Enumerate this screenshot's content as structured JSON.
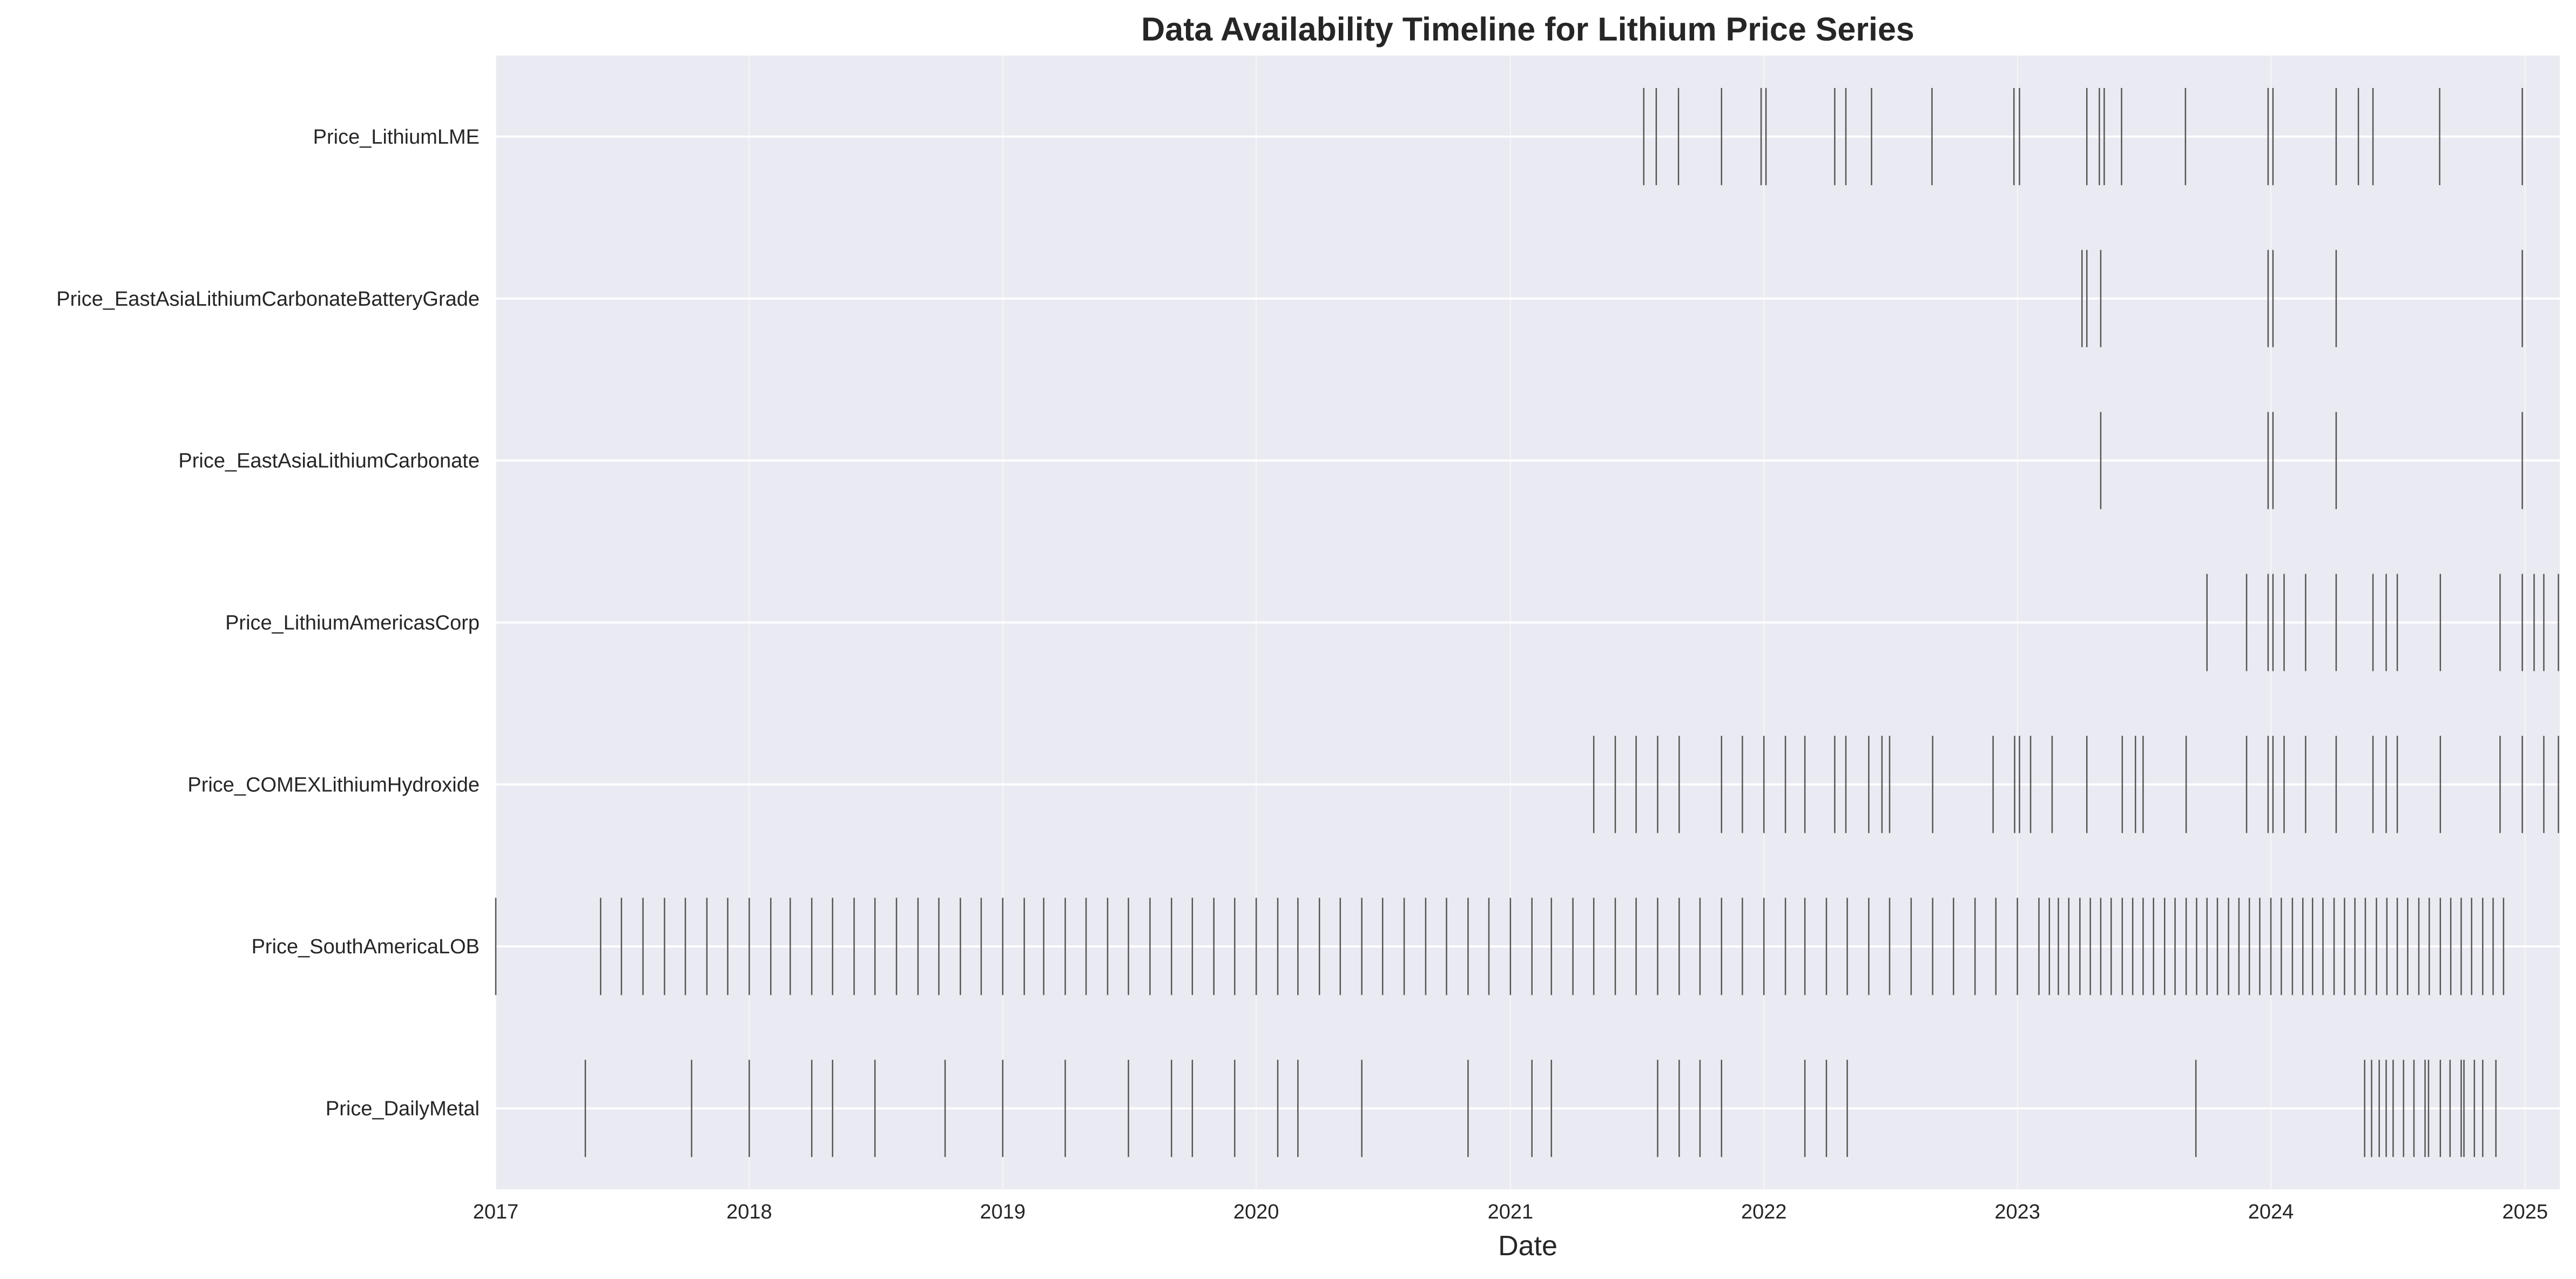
{
  "chart_data": {
    "type": "timeline",
    "title": "Data Availability Timeline for Lithium Price Series",
    "xlabel": "Date",
    "ylabel": "",
    "xlim": [
      "2017-01-01",
      "2025-02-20"
    ],
    "x_ticks": [
      "2017",
      "2018",
      "2019",
      "2020",
      "2021",
      "2022",
      "2023",
      "2024",
      "2025"
    ],
    "grid": true,
    "colors": {
      "plot_background": "#eaeaf2",
      "grid": "#ffffff",
      "event": "#555555",
      "text": "#262626"
    },
    "series": [
      {
        "name": "Price_LithiumLME",
        "dates": [
          "2021-07-12",
          "2021-07-30",
          "2021-08-31",
          "2021-11-01",
          "2021-12-28",
          "2022-01-04",
          "2022-04-13",
          "2022-04-29",
          "2022-06-05",
          "2022-08-31",
          "2022-12-27",
          "2023-01-04",
          "2023-04-11",
          "2023-04-29",
          "2023-05-06",
          "2023-05-31",
          "2023-08-31",
          "2023-12-28",
          "2024-01-04",
          "2024-04-04",
          "2024-05-06",
          "2024-05-27",
          "2024-08-31",
          "2024-12-28"
        ]
      },
      {
        "name": "Price_EastAsiaLithiumCarbonateBatteryGrade",
        "dates": [
          "2023-04-04",
          "2023-04-11",
          "2023-05-01",
          "2023-12-28",
          "2024-01-04",
          "2024-04-04",
          "2024-12-28"
        ]
      },
      {
        "name": "Price_EastAsiaLithiumCarbonate",
        "dates": [
          "2023-05-01",
          "2023-12-28",
          "2024-01-04",
          "2024-04-04",
          "2024-12-28"
        ]
      },
      {
        "name": "Price_LithiumAmericasCorp",
        "dates": [
          "2023-10-01",
          "2023-11-27",
          "2023-12-28",
          "2024-01-04",
          "2024-01-20",
          "2024-02-20",
          "2024-04-04",
          "2024-05-27",
          "2024-06-15",
          "2024-07-01",
          "2024-09-01",
          "2024-11-26",
          "2024-12-28",
          "2025-01-14",
          "2025-01-28",
          "2025-02-18"
        ]
      },
      {
        "name": "Price_COMEXLithiumHydroxide",
        "dates": [
          "2021-05-01",
          "2021-06-01",
          "2021-07-01",
          "2021-08-01",
          "2021-09-01",
          "2021-11-01",
          "2021-12-01",
          "2022-01-01",
          "2022-02-01",
          "2022-03-01",
          "2022-04-13",
          "2022-04-29",
          "2022-06-01",
          "2022-06-20",
          "2022-07-01",
          "2022-09-01",
          "2022-11-27",
          "2022-12-28",
          "2023-01-04",
          "2023-01-20",
          "2023-02-20",
          "2023-04-11",
          "2023-06-01",
          "2023-06-20",
          "2023-07-01",
          "2023-09-01",
          "2023-11-27",
          "2023-12-28",
          "2024-01-04",
          "2024-01-20",
          "2024-02-20",
          "2024-04-04",
          "2024-05-27",
          "2024-06-15",
          "2024-07-01",
          "2024-09-01",
          "2024-11-26",
          "2024-12-28",
          "2025-01-28",
          "2025-02-18"
        ]
      },
      {
        "name": "Price_SouthAmericaLOB",
        "dates": [
          "2017-01-01",
          "2017-06-01",
          "2017-07-01",
          "2017-08-01",
          "2017-09-01",
          "2017-10-01",
          "2017-11-01",
          "2017-12-01",
          "2018-01-01",
          "2018-02-01",
          "2018-03-01",
          "2018-04-01",
          "2018-05-01",
          "2018-06-01",
          "2018-07-01",
          "2018-08-01",
          "2018-09-01",
          "2018-10-01",
          "2018-11-01",
          "2018-12-01",
          "2019-01-01",
          "2019-02-01",
          "2019-03-01",
          "2019-04-01",
          "2019-05-01",
          "2019-06-01",
          "2019-07-01",
          "2019-08-01",
          "2019-09-01",
          "2019-10-01",
          "2019-11-01",
          "2019-12-01",
          "2020-01-01",
          "2020-02-01",
          "2020-03-01",
          "2020-04-01",
          "2020-05-01",
          "2020-06-01",
          "2020-07-01",
          "2020-08-01",
          "2020-09-01",
          "2020-10-01",
          "2020-11-01",
          "2020-12-01",
          "2021-01-01",
          "2021-02-01",
          "2021-03-01",
          "2021-04-01",
          "2021-05-01",
          "2021-06-01",
          "2021-07-01",
          "2021-08-01",
          "2021-09-01",
          "2021-10-01",
          "2021-11-01",
          "2021-12-01",
          "2022-01-01",
          "2022-02-01",
          "2022-03-01",
          "2022-04-01",
          "2022-05-01",
          "2022-06-01",
          "2022-07-01",
          "2022-08-01",
          "2022-09-01",
          "2022-10-01",
          "2022-11-01",
          "2022-12-01",
          "2023-01-01",
          "2023-02-01",
          "2023-02-16",
          "2023-03-01",
          "2023-03-16",
          "2023-04-01",
          "2023-04-16",
          "2023-05-01",
          "2023-05-16",
          "2023-06-01",
          "2023-06-16",
          "2023-07-01",
          "2023-07-16",
          "2023-08-01",
          "2023-08-16",
          "2023-09-01",
          "2023-09-16",
          "2023-10-01",
          "2023-10-16",
          "2023-11-01",
          "2023-11-16",
          "2023-12-01",
          "2023-12-16",
          "2024-01-01",
          "2024-01-16",
          "2024-02-01",
          "2024-02-16",
          "2024-03-01",
          "2024-03-16",
          "2024-04-01",
          "2024-04-16",
          "2024-05-01",
          "2024-05-16",
          "2024-06-01",
          "2024-06-16",
          "2024-07-01",
          "2024-07-16",
          "2024-08-01",
          "2024-08-16",
          "2024-09-01",
          "2024-09-16",
          "2024-10-01",
          "2024-10-16",
          "2024-11-01",
          "2024-11-16",
          "2024-12-01"
        ]
      },
      {
        "name": "Price_DailyMetal",
        "dates": [
          "2017-05-10",
          "2017-10-10",
          "2018-01-01",
          "2018-04-01",
          "2018-05-01",
          "2018-07-01",
          "2018-10-10",
          "2019-01-01",
          "2019-04-01",
          "2019-07-01",
          "2019-09-01",
          "2019-10-01",
          "2019-12-01",
          "2020-02-01",
          "2020-03-01",
          "2020-06-01",
          "2020-11-01",
          "2021-02-01",
          "2021-03-01",
          "2021-08-01",
          "2021-09-01",
          "2021-10-01",
          "2021-11-01",
          "2022-03-01",
          "2022-04-01",
          "2022-05-01",
          "2023-09-15",
          "2024-05-15",
          "2024-05-25",
          "2024-06-05",
          "2024-06-15",
          "2024-06-25",
          "2024-07-10",
          "2024-07-25",
          "2024-08-10",
          "2024-08-15",
          "2024-09-01",
          "2024-09-15",
          "2024-10-01",
          "2024-10-05",
          "2024-10-20",
          "2024-11-01",
          "2024-11-20"
        ]
      }
    ]
  }
}
